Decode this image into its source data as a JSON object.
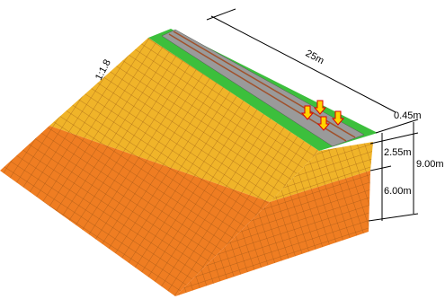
{
  "labels": {
    "length": "25m",
    "slope": "1:1.8",
    "top_layer": "0.45m",
    "middle_layer": "2.55m",
    "total_height": "9.00m",
    "lower_layer": "6.00m"
  }
}
